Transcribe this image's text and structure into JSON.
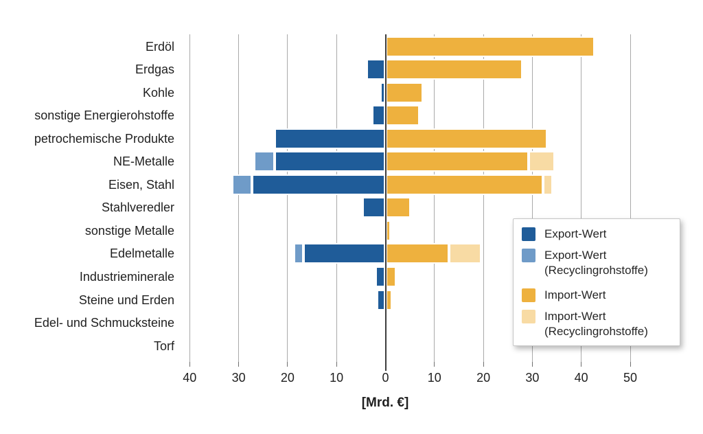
{
  "chart_data": {
    "type": "bar",
    "orientation": "horizontal-diverging",
    "title": "",
    "xlabel": "[Mrd. €]",
    "ylabel": "",
    "grid": true,
    "legend_position": "right-overlay",
    "axis": {
      "xlim": [
        -41,
        58
      ],
      "tick_values": [
        -40,
        -30,
        -20,
        -10,
        0,
        10,
        20,
        30,
        40,
        50
      ],
      "tick_labels": [
        "40",
        "30",
        "20",
        "10",
        "0",
        "10",
        "20",
        "30",
        "40",
        "50"
      ]
    },
    "categories": [
      "Erdöl",
      "Erdgas",
      "Kohle",
      "sonstige Energierohstoffe",
      "petrochemische Produkte",
      "NE-Metalle",
      "Eisen, Stahl",
      "Stahlveredler",
      "sonstige Metalle",
      "Edelmetalle",
      "Industrieminerale",
      "Steine und Erden",
      "Edel- und Schmucksteine",
      "Torf"
    ],
    "series": [
      {
        "name": "Export-Wert",
        "side": "left",
        "color": "#1f5c99",
        "values": [
          0,
          3.8,
          1.0,
          2.8,
          22.6,
          22.6,
          27.3,
          4.7,
          0.4,
          16.7,
          2.0,
          1.7,
          0.6,
          0.15
        ]
      },
      {
        "name": "Export-Wert (Recyclingrohstoffe)",
        "side": "left",
        "color": "#6f9bc8",
        "values": [
          0,
          0,
          0,
          0,
          0,
          4.2,
          4.1,
          0.6,
          0,
          2.0,
          0,
          0,
          0,
          0
        ]
      },
      {
        "name": "Import-Wert",
        "side": "right",
        "color": "#eeb13e",
        "values": [
          42.7,
          28.0,
          7.7,
          7.0,
          33.0,
          29.2,
          32.2,
          5.1,
          1.0,
          13.0,
          2.2,
          1.3,
          0.5,
          0.2
        ]
      },
      {
        "name": "Import-Wert (Recyclingrohstoffe)",
        "side": "right",
        "color": "#f8dba4",
        "values": [
          0,
          0,
          0,
          0,
          0,
          5.4,
          1.9,
          0.5,
          0,
          6.5,
          0,
          0,
          0,
          0
        ]
      }
    ]
  },
  "axis_title": "[Mrd. €]",
  "legend": {
    "entries": [
      {
        "label": "Export-Wert",
        "sublabel": ""
      },
      {
        "label": "Export-Wert",
        "sublabel": "(Recyclingrohstoffe)"
      },
      {
        "label": "Import-Wert",
        "sublabel": ""
      },
      {
        "label": "Import-Wert",
        "sublabel": "(Recyclingrohstoffe)"
      }
    ]
  },
  "colors": {
    "export": "#1f5c99",
    "export_recycling": "#6f9bc8",
    "import": "#eeb13e",
    "import_recycling": "#f8dba4",
    "gridline": "#a9a9a9",
    "zero_line": "#3d3d3d",
    "text": "#1f1f1f"
  }
}
